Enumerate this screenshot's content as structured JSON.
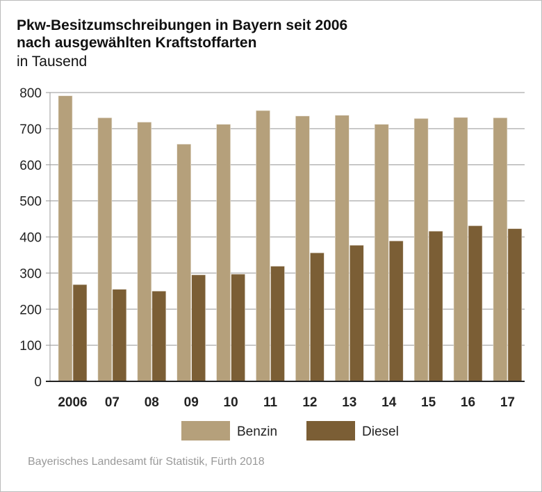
{
  "chart_data": {
    "type": "bar",
    "title": "Pkw-Besitzumschreibungen in Bayern seit 2006",
    "subtitle": "nach ausgewählten Kraftstoffarten",
    "unit": "in Tausend",
    "categories": [
      "2006",
      "07",
      "08",
      "09",
      "10",
      "11",
      "12",
      "13",
      "14",
      "15",
      "16",
      "17"
    ],
    "series": [
      {
        "name": "Benzin",
        "color": "#b5a07b",
        "values": [
          791,
          730,
          718,
          657,
          712,
          750,
          735,
          737,
          712,
          728,
          731,
          730
        ]
      },
      {
        "name": "Diesel",
        "color": "#7b5e35",
        "values": [
          268,
          255,
          250,
          295,
          297,
          319,
          356,
          377,
          389,
          416,
          431,
          423
        ]
      }
    ],
    "ylim": [
      0,
      800
    ],
    "yticks": [
      "0",
      "100",
      "200",
      "300",
      "400",
      "500",
      "600",
      "700",
      "800"
    ],
    "grid": true,
    "legend": "bottom"
  },
  "source": "Bayerisches Landesamt für Statistik, Fürth 2018"
}
